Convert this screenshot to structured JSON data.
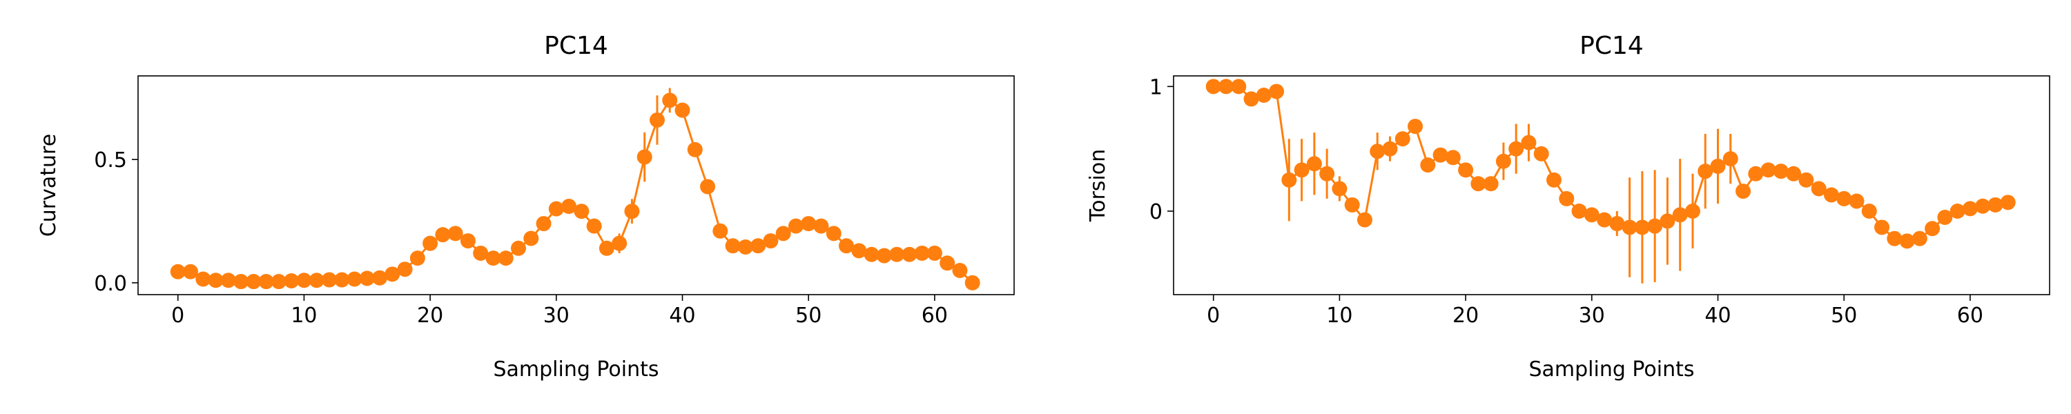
{
  "chart_data": [
    {
      "type": "line",
      "title": "PC14",
      "x_label": "Sampling Points",
      "y_label": "Curvature",
      "x": [
        0,
        1,
        2,
        3,
        4,
        5,
        6,
        7,
        8,
        9,
        10,
        11,
        12,
        13,
        14,
        15,
        16,
        17,
        18,
        19,
        20,
        21,
        22,
        23,
        24,
        25,
        26,
        27,
        28,
        29,
        30,
        31,
        32,
        33,
        34,
        35,
        36,
        37,
        38,
        39,
        40,
        41,
        42,
        43,
        44,
        45,
        46,
        47,
        48,
        49,
        50,
        51,
        52,
        53,
        54,
        55,
        56,
        57,
        58,
        59,
        60,
        61,
        62,
        63
      ],
      "series": [
        {
          "name": "PC14",
          "color": "#ff7f0e",
          "values": [
            0.045,
            0.045,
            0.015,
            0.01,
            0.01,
            0.005,
            0.005,
            0.005,
            0.005,
            0.008,
            0.01,
            0.01,
            0.012,
            0.012,
            0.015,
            0.018,
            0.02,
            0.035,
            0.055,
            0.1,
            0.16,
            0.195,
            0.2,
            0.17,
            0.12,
            0.1,
            0.1,
            0.14,
            0.18,
            0.24,
            0.3,
            0.31,
            0.29,
            0.23,
            0.14,
            0.16,
            0.29,
            0.51,
            0.66,
            0.74,
            0.7,
            0.54,
            0.39,
            0.21,
            0.15,
            0.145,
            0.15,
            0.17,
            0.2,
            0.23,
            0.24,
            0.23,
            0.2,
            0.15,
            0.13,
            0.115,
            0.11,
            0.115,
            0.115,
            0.12,
            0.12,
            0.08,
            0.05,
            0.0
          ],
          "errors": [
            0.01,
            0.01,
            0.01,
            0.01,
            0.01,
            0.01,
            0.01,
            0.01,
            0.01,
            0.01,
            0.01,
            0.01,
            0.01,
            0.01,
            0.01,
            0.01,
            0.01,
            0.01,
            0.01,
            0.01,
            0.02,
            0.02,
            0.02,
            0.02,
            0.02,
            0.02,
            0.02,
            0.02,
            0.02,
            0.02,
            0.02,
            0.02,
            0.02,
            0.02,
            0.02,
            0.04,
            0.05,
            0.1,
            0.1,
            0.05,
            0.03,
            0.02,
            0.02,
            0.02,
            0.01,
            0.01,
            0.01,
            0.01,
            0.01,
            0.01,
            0.01,
            0.01,
            0.01,
            0.01,
            0.01,
            0.01,
            0.01,
            0.01,
            0.01,
            0.01,
            0.01,
            0.01,
            0.01,
            0.01
          ]
        }
      ],
      "xlim": [
        -3.16,
        66.3
      ],
      "ylim": [
        -0.048,
        0.839
      ],
      "xticks": [
        0,
        10,
        20,
        30,
        40,
        50,
        60
      ],
      "yticks": [
        {
          "value": 0,
          "label": "0.0"
        },
        {
          "value": 0.5,
          "label": "0.5"
        }
      ]
    },
    {
      "type": "line",
      "title": "PC14",
      "x_label": "Sampling Points",
      "y_label": "Torsion",
      "x": [
        0,
        1,
        2,
        3,
        4,
        5,
        6,
        7,
        8,
        9,
        10,
        11,
        12,
        13,
        14,
        15,
        16,
        17,
        18,
        19,
        20,
        21,
        22,
        23,
        24,
        25,
        26,
        27,
        28,
        29,
        30,
        31,
        32,
        33,
        34,
        35,
        36,
        37,
        38,
        39,
        40,
        41,
        42,
        43,
        44,
        45,
        46,
        47,
        48,
        49,
        50,
        51,
        52,
        53,
        54,
        55,
        56,
        57,
        58,
        59,
        60,
        61,
        62,
        63
      ],
      "series": [
        {
          "name": "PC14",
          "color": "#ff7f0e",
          "values": [
            1.0,
            1.0,
            1.0,
            0.9,
            0.93,
            0.96,
            0.25,
            0.33,
            0.38,
            0.3,
            0.18,
            0.05,
            -0.07,
            0.48,
            0.5,
            0.58,
            0.68,
            0.37,
            0.45,
            0.43,
            0.33,
            0.22,
            0.22,
            0.4,
            0.5,
            0.55,
            0.46,
            0.25,
            0.1,
            0.0,
            -0.03,
            -0.07,
            -0.1,
            -0.13,
            -0.13,
            -0.12,
            -0.08,
            -0.03,
            0.0,
            0.32,
            0.36,
            0.42,
            0.16,
            0.3,
            0.33,
            0.32,
            0.3,
            0.25,
            0.18,
            0.13,
            0.1,
            0.08,
            0.0,
            -0.13,
            -0.22,
            -0.24,
            -0.22,
            -0.14,
            -0.05,
            0.0,
            0.02,
            0.04,
            0.05,
            0.07
          ],
          "errors": [
            0.03,
            0.03,
            0.03,
            0.03,
            0.03,
            0.03,
            0.33,
            0.25,
            0.25,
            0.2,
            0.1,
            0.05,
            0.05,
            0.15,
            0.1,
            0.05,
            0.05,
            0.05,
            0.05,
            0.05,
            0.05,
            0.05,
            0.05,
            0.15,
            0.2,
            0.15,
            0.05,
            0.05,
            0.05,
            0.05,
            0.05,
            0.05,
            0.1,
            0.4,
            0.45,
            0.45,
            0.35,
            0.45,
            0.3,
            0.3,
            0.3,
            0.2,
            0.03,
            0.03,
            0.03,
            0.03,
            0.03,
            0.03,
            0.03,
            0.03,
            0.03,
            0.03,
            0.03,
            0.03,
            0.03,
            0.03,
            0.03,
            0.03,
            0.03,
            0.03,
            0.03,
            0.03,
            0.03,
            0.03
          ]
        }
      ],
      "xlim": [
        -3.16,
        66.3
      ],
      "ylim": [
        -0.67,
        1.085
      ],
      "xticks": [
        0,
        10,
        20,
        30,
        40,
        50,
        60
      ],
      "yticks": [
        0,
        1
      ]
    }
  ]
}
